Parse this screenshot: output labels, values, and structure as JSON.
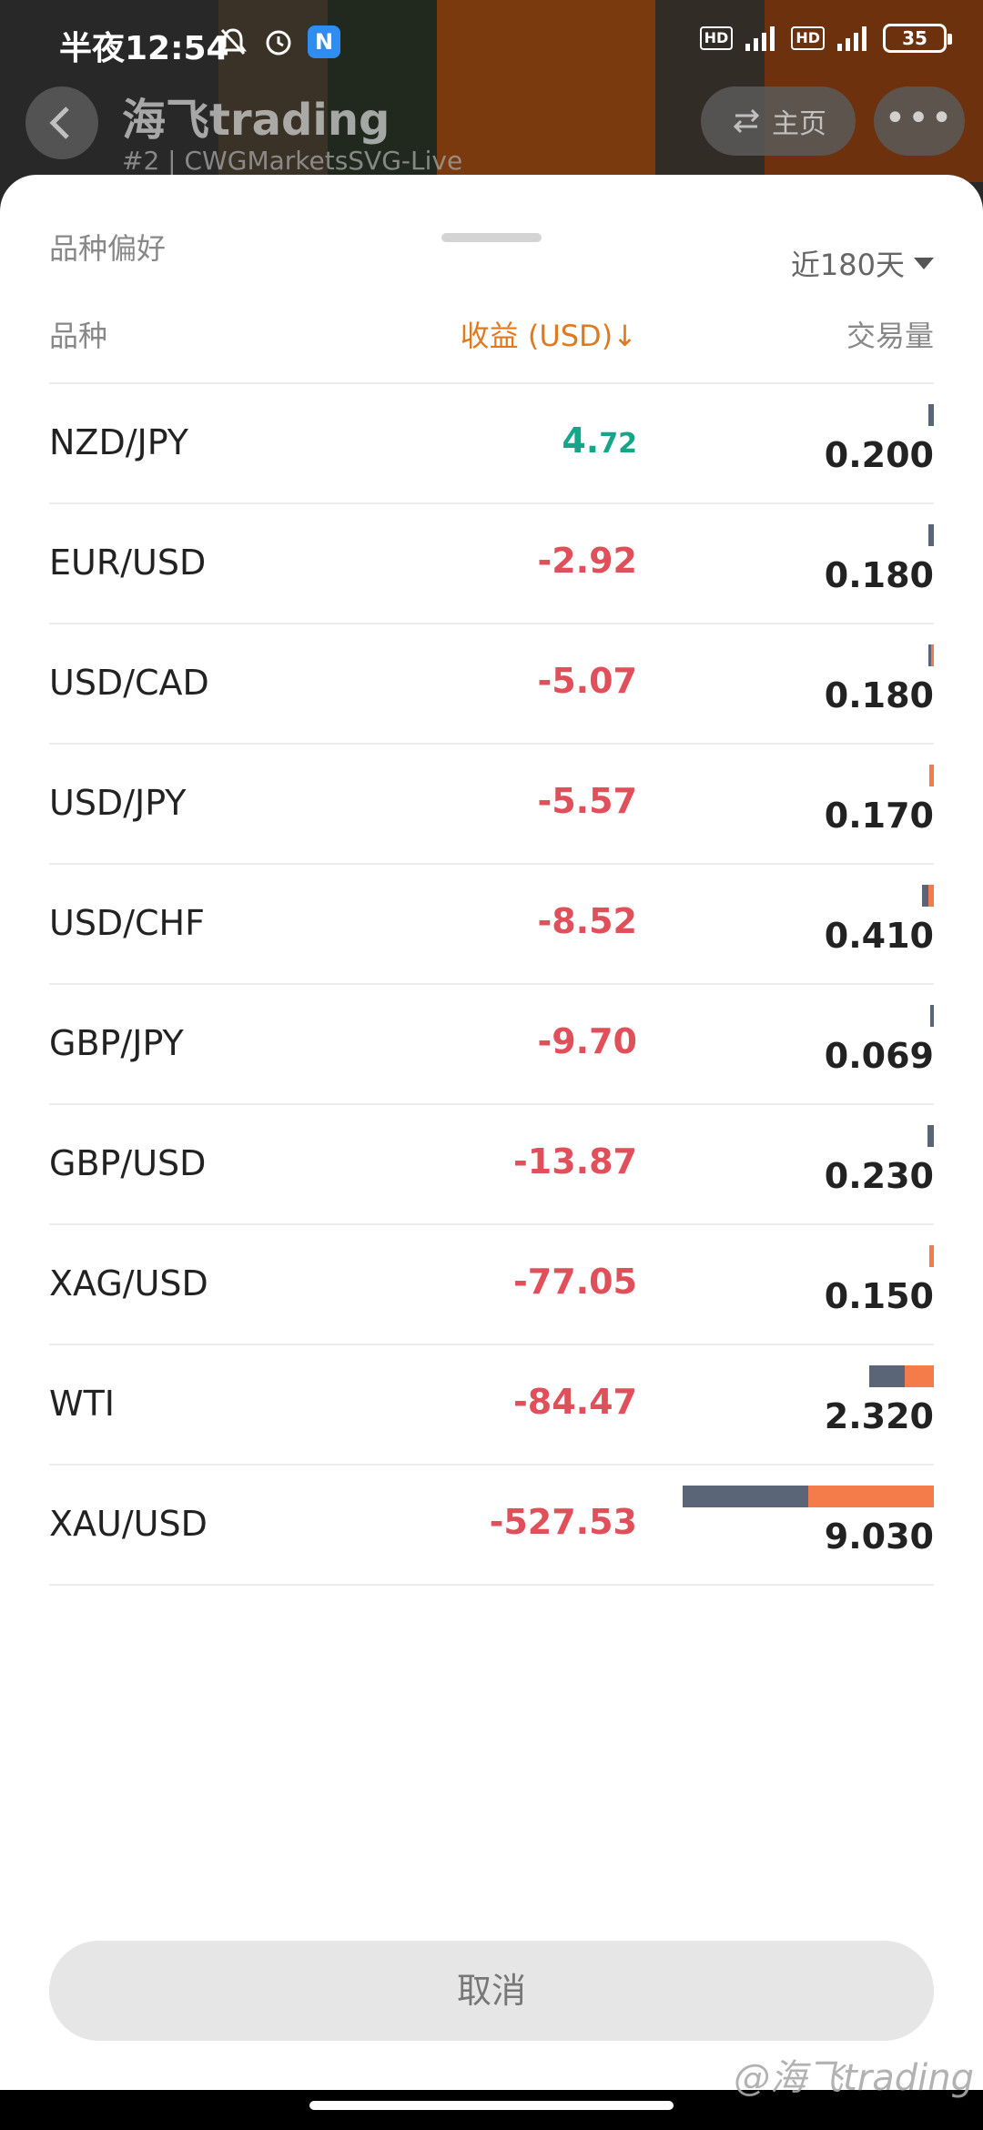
{
  "statusbar": {
    "time": "半夜12:54",
    "notification_badge": "N",
    "hd1": "HD",
    "hd2": "HD",
    "battery": "35"
  },
  "app_header": {
    "title": "海飞trading",
    "subtitle": "#2 | CWGMarketsSVG-Live",
    "home_label": "主页",
    "more_label": "•••"
  },
  "sheet": {
    "title": "品种偏好",
    "period": "近180天",
    "columns": {
      "symbol": "品种",
      "profit": "收益 (USD)↓",
      "volume": "交易量"
    },
    "colors": {
      "sell_bar": "#5a6678",
      "buy_bar": "#f47b4a",
      "positive": "#17a589",
      "negative": "#e0505a",
      "accent": "#e07a1f"
    },
    "rows": [
      {
        "symbol": "NZD/JPY",
        "profit_int": "4.",
        "profit_dec": "72",
        "positive": true,
        "volume": "0.200",
        "sell_share": 1.0
      },
      {
        "symbol": "EUR/USD",
        "profit": "-2.92",
        "volume": "0.180",
        "sell_share": 1.0
      },
      {
        "symbol": "USD/CAD",
        "profit": "-5.07",
        "volume": "0.180",
        "sell_share": 0.5
      },
      {
        "symbol": "USD/JPY",
        "profit": "-5.57",
        "volume": "0.170",
        "sell_share": 0.0
      },
      {
        "symbol": "USD/CHF",
        "profit": "-8.52",
        "volume": "0.410",
        "sell_share": 0.5
      },
      {
        "symbol": "GBP/JPY",
        "profit": "-9.70",
        "volume": "0.069",
        "sell_share": 1.0
      },
      {
        "symbol": "GBP/USD",
        "profit": "-13.87",
        "volume": "0.230",
        "sell_share": 1.0
      },
      {
        "symbol": "XAG/USD",
        "profit": "-77.05",
        "volume": "0.150",
        "sell_share": 0.0
      },
      {
        "symbol": "WTI",
        "profit": "-84.47",
        "volume": "2.320",
        "sell_share": 0.55
      },
      {
        "symbol": "XAU/USD",
        "profit": "-527.53",
        "volume": "9.030",
        "sell_share": 0.5
      }
    ],
    "cancel_label": "取消"
  },
  "watermark": "@海飞trading"
}
